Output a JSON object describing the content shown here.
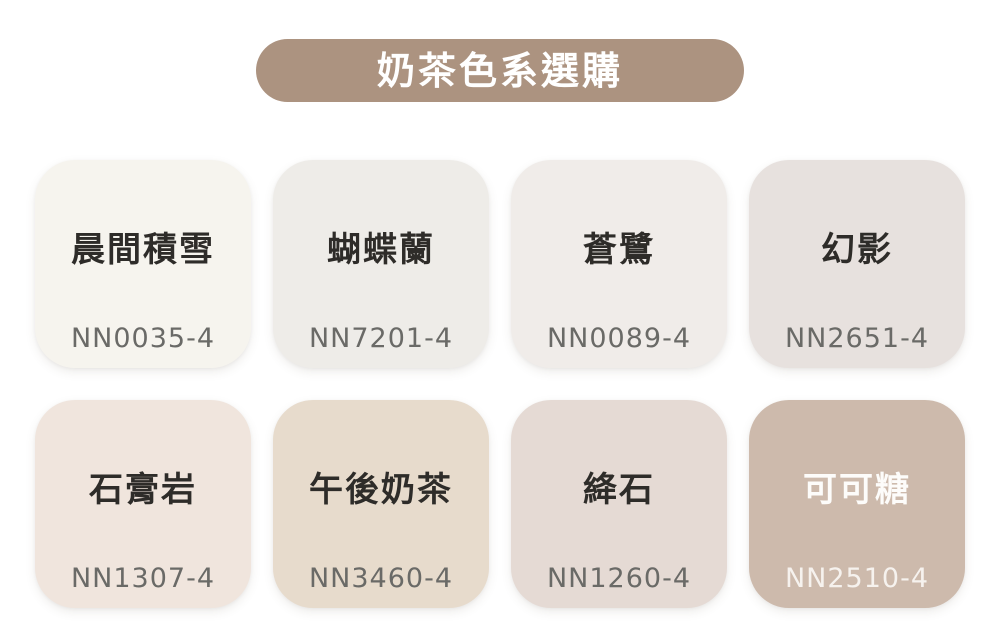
{
  "header": {
    "title": "奶茶色系選購",
    "bg_color": "#AC9380",
    "text_color": "#FFFFFF"
  },
  "swatches": [
    {
      "name": "晨間積雪",
      "code": "NN0035-4",
      "bg_color": "#F6F4EE",
      "name_color": "#2E2C29",
      "code_color": "#6A6A67"
    },
    {
      "name": "蝴蝶蘭",
      "code": "NN7201-4",
      "bg_color": "#EEECE8",
      "name_color": "#2E2C29",
      "code_color": "#6A6A67"
    },
    {
      "name": "蒼鷺",
      "code": "NN0089-4",
      "bg_color": "#F0ECE9",
      "name_color": "#2E2C29",
      "code_color": "#6A6A67"
    },
    {
      "name": "幻影",
      "code": "NN2651-4",
      "bg_color": "#E7E1DE",
      "name_color": "#2E2C29",
      "code_color": "#6A6A67"
    },
    {
      "name": "石膏岩",
      "code": "NN1307-4",
      "bg_color": "#F0E5DD",
      "name_color": "#2E2C29",
      "code_color": "#6A6A67"
    },
    {
      "name": "午後奶茶",
      "code": "NN3460-4",
      "bg_color": "#E7DBCC",
      "name_color": "#2E2C29",
      "code_color": "#6A6A67"
    },
    {
      "name": "絳石",
      "code": "NN1260-4",
      "bg_color": "#E5DAD4",
      "name_color": "#2E2C29",
      "code_color": "#6A6A67"
    },
    {
      "name": "可可糖",
      "code": "NN2510-4",
      "bg_color": "#CDBAAC",
      "name_color": "#FDFCFA",
      "code_color": "#F6F2EE"
    }
  ]
}
